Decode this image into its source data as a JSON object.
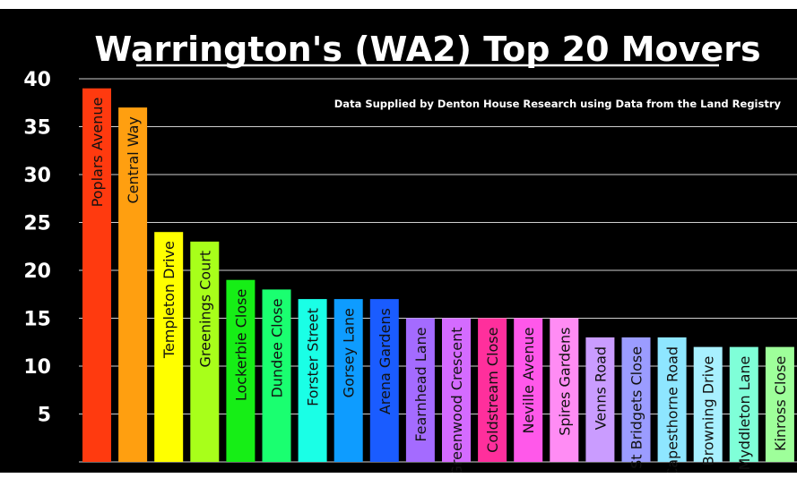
{
  "chart_data": {
    "type": "bar",
    "title": "Warrington's (WA2) Top 20 Movers",
    "subtitle": "Data Supplied by Denton House Research using Data from the Land Registry",
    "xlabel": "",
    "ylabel": "",
    "ylim": [
      0,
      40
    ],
    "yticks": [
      5,
      10,
      15,
      20,
      25,
      30,
      35,
      40
    ],
    "grid": true,
    "legend": "none",
    "background": "#000000",
    "categories": [
      "Poplars Avenue",
      "Central Way",
      "Templeton Drive",
      "Greenings Court",
      "Lockerbie Close",
      "Dundee Close",
      "Forster Street",
      "Gorsey Lane",
      "Arena Gardens",
      "Fearnhead Lane",
      "Greenwood Crescent",
      "Coldstream Close",
      "Neville Avenue",
      "Spires Gardens",
      "Venns Road",
      "St Bridgets Close",
      "Capesthorne Road",
      "Browning Drive",
      "Myddleton Lane",
      "Kinross Close"
    ],
    "values": [
      39,
      37,
      24,
      23,
      19,
      18,
      17,
      17,
      17,
      15,
      15,
      15,
      15,
      15,
      13,
      13,
      13,
      12,
      12,
      12
    ],
    "colors": [
      "#ff3a0f",
      "#ff9f10",
      "#ffff00",
      "#a8ff1a",
      "#16ee16",
      "#1aff70",
      "#1affe6",
      "#0e9cff",
      "#1a5cff",
      "#a46bff",
      "#d46bff",
      "#ff2f9c",
      "#ff58ea",
      "#ff8cf4",
      "#ca9cff",
      "#9b9cff",
      "#8ee6ff",
      "#a8f0ff",
      "#7fffd8",
      "#9eff9a"
    ]
  }
}
